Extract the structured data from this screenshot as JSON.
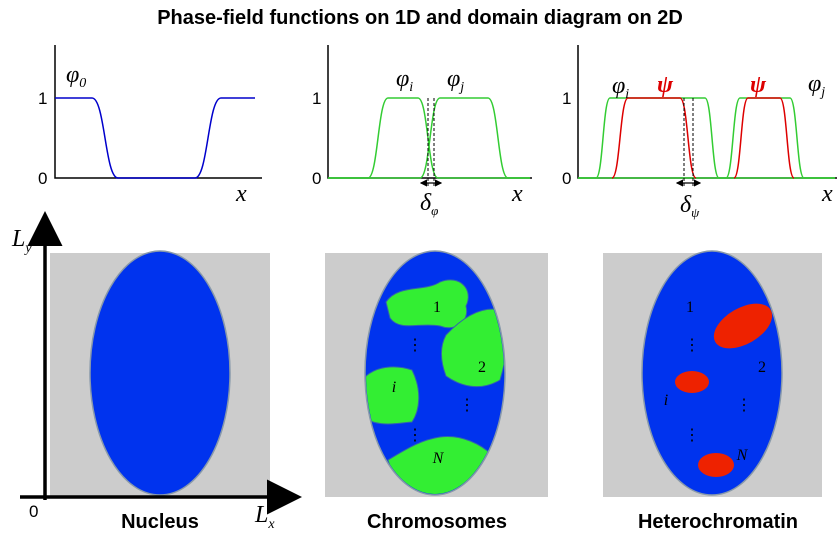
{
  "title": "Phase-field functions on 1D and domain diagram on 2D",
  "plots": [
    {
      "labels": [
        {
          "symbol": "φ",
          "sub": "0"
        }
      ],
      "ytick_top": "1",
      "ytick_bottom": "0",
      "xlabel": "x"
    },
    {
      "labels": [
        {
          "symbol": "φ",
          "sub": "i"
        },
        {
          "symbol": "φ",
          "sub": "j"
        }
      ],
      "width": {
        "symbol": "δ",
        "sub": "φ"
      },
      "ytick_top": "1",
      "ytick_bottom": "0",
      "xlabel": "x"
    },
    {
      "labels": [
        {
          "symbol": "φ",
          "sub": "i"
        },
        {
          "symbol": "ψ"
        },
        {
          "symbol": "ψ"
        },
        {
          "symbol": "φ",
          "sub": "j"
        }
      ],
      "width": {
        "symbol": "δ",
        "sub": "ψ"
      },
      "ytick_top": "1",
      "ytick_bottom": "0",
      "xlabel": "x"
    }
  ],
  "domain": {
    "y_axis": {
      "symbol": "L",
      "sub": "y"
    },
    "x_axis": {
      "symbol": "L",
      "sub": "x"
    },
    "origin": "0"
  },
  "panels": [
    {
      "caption": "Nucleus"
    },
    {
      "caption": "Chromosomes",
      "regions": [
        "1",
        "2",
        "i",
        "N"
      ]
    },
    {
      "caption": "Heterochromatin",
      "regions": [
        "1",
        "2",
        "i",
        "N"
      ]
    }
  ]
}
